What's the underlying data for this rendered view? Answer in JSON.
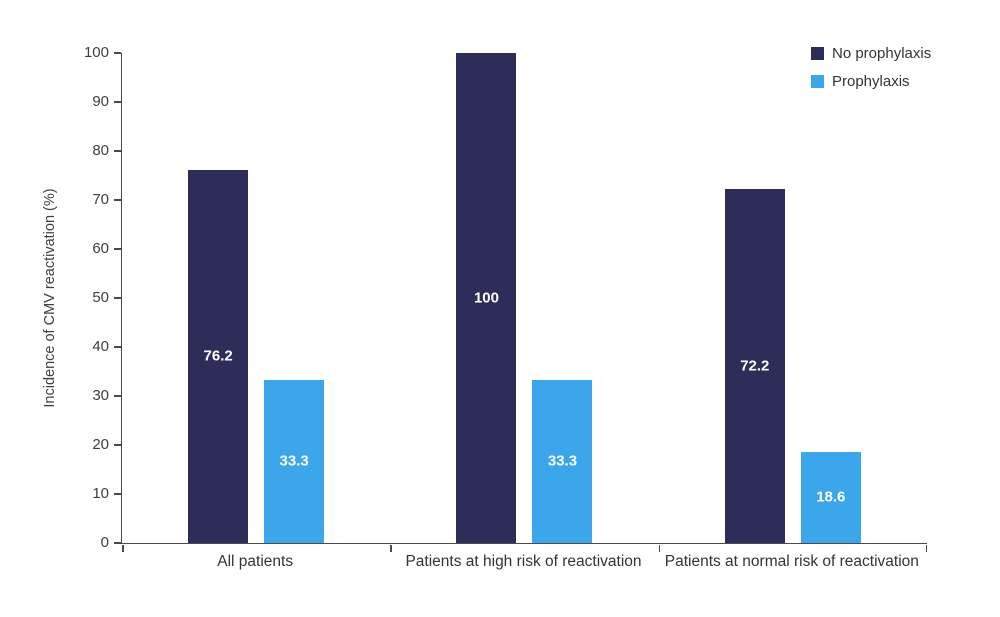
{
  "figure": {
    "background": "#ffffff",
    "axis_color": "#4a4a4a",
    "tick_text_color": "#3f3f3f",
    "data_label_color": "#ffffff"
  },
  "chart_data": {
    "type": "bar",
    "title": "",
    "xlabel": "",
    "ylabel": "Incidence of CMV reactivation (%)",
    "categories": [
      "All patients",
      "Patients at high risk of reactivation",
      "Patients at normal risk of reactivation"
    ],
    "series": [
      {
        "name": "No prophylaxis",
        "color": "#2e2c58",
        "values": [
          76.2,
          100,
          72.2
        ],
        "data_labels": [
          "76.2",
          "100",
          "72.2"
        ]
      },
      {
        "name": "Prophylaxis",
        "color": "#3ba6ea",
        "values": [
          33.3,
          33.3,
          18.6
        ],
        "data_labels": [
          "33.3",
          "33.3",
          "18.6"
        ]
      }
    ],
    "ylim": [
      0,
      100
    ],
    "yticks": [
      0,
      10,
      20,
      30,
      40,
      50,
      60,
      70,
      80,
      90,
      100
    ],
    "grid": false,
    "legend_position": "top-right"
  }
}
